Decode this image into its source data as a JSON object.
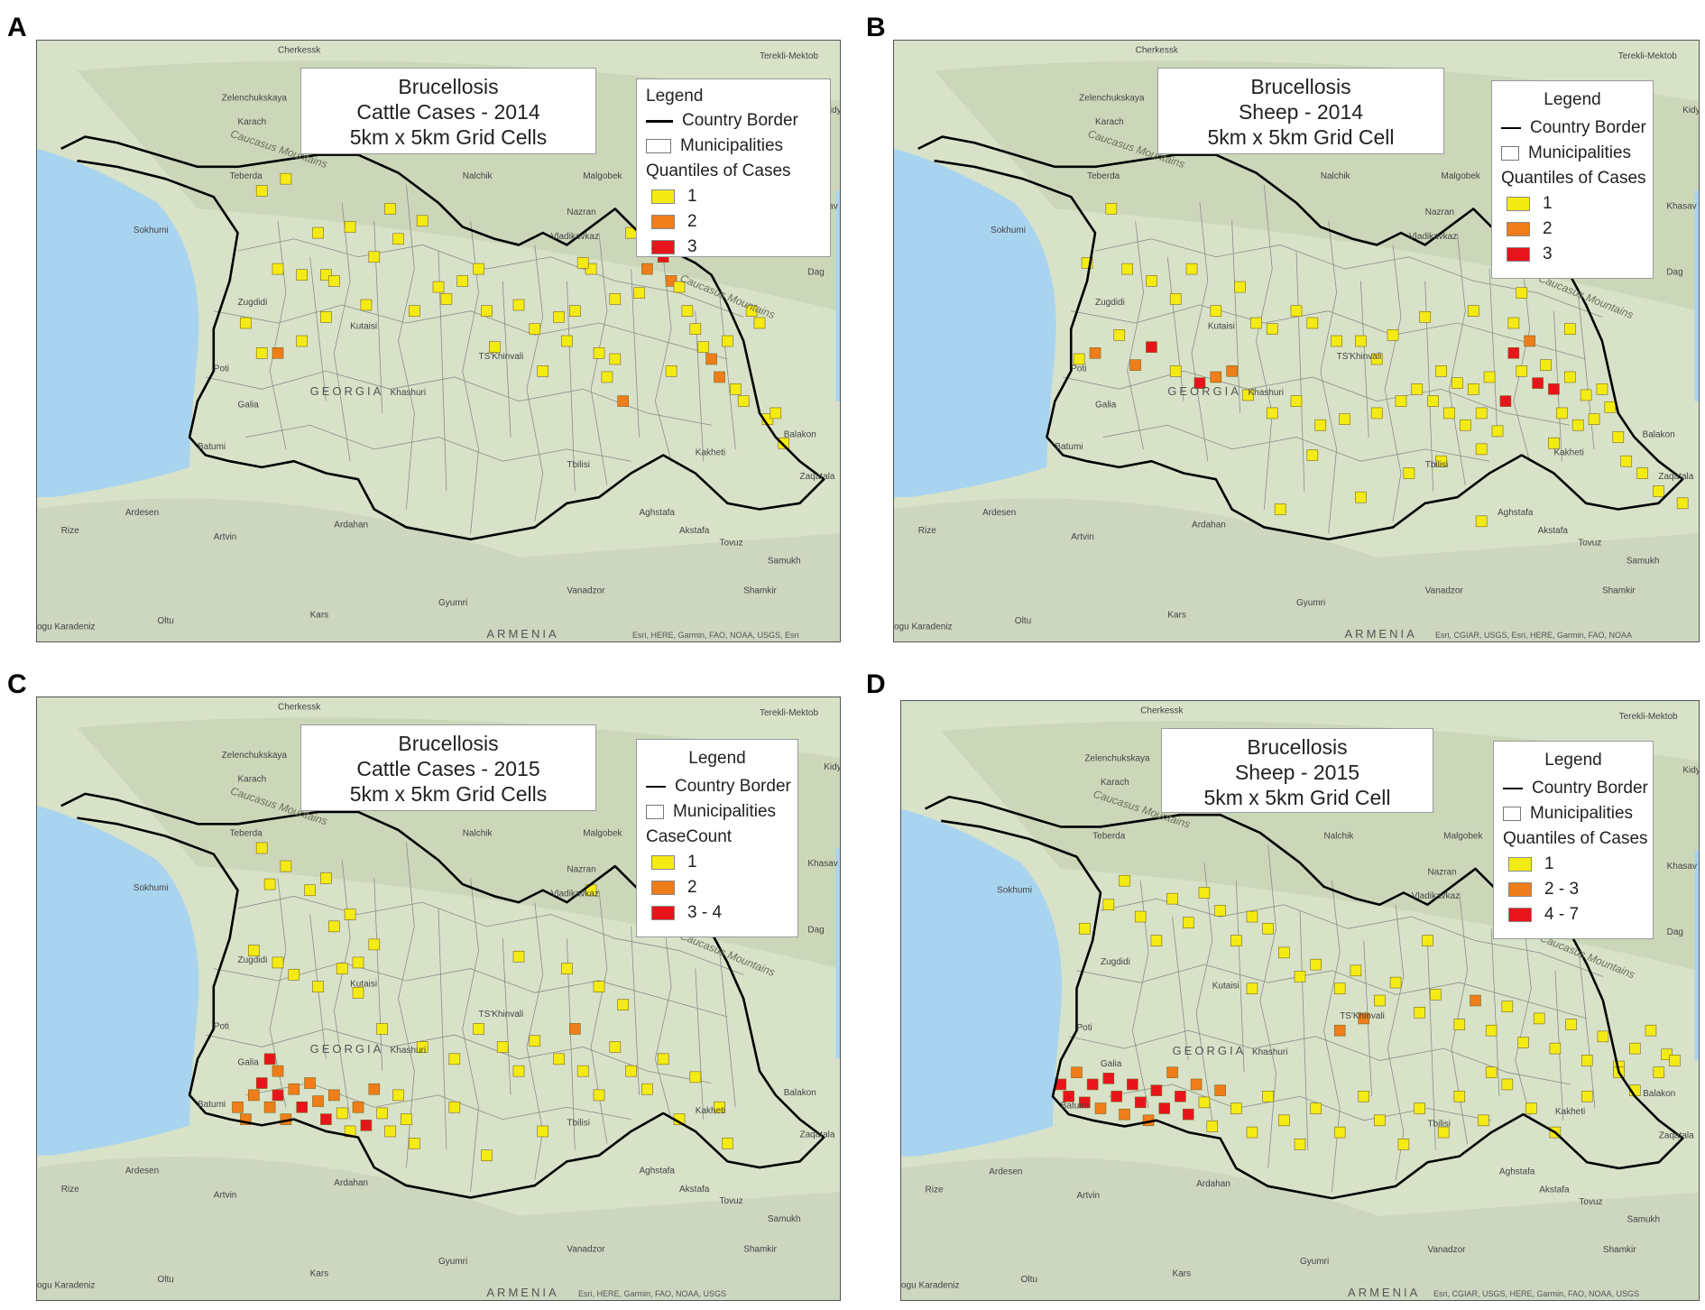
{
  "colors": {
    "class1": "#f5eb14",
    "class2": "#ef7d1a",
    "class3": "#e8141c",
    "sea": "#a9d4f0",
    "land": "#d8e2c8",
    "border": "#000000",
    "municipalities": "#8c8c8c"
  },
  "panels": [
    {
      "letter": "A",
      "title_lines": [
        "Brucellosis",
        "Cattle Cases - 2014",
        "5km x 5km Grid Cells"
      ],
      "legend": {
        "title": "Legend",
        "country_border": "Country Border",
        "municipalities": "Municipalities",
        "class_title": "Quantiles of Cases",
        "classes": [
          "1",
          "2",
          "3"
        ]
      },
      "attribution": "Esri, HERE, Garmin, FAO, NOAA, USGS, Esri"
    },
    {
      "letter": "B",
      "title_lines": [
        "Brucellosis",
        "Sheep - 2014",
        "5km x 5km Grid Cell"
      ],
      "legend": {
        "title": "Legend",
        "country_border": "Country Border",
        "municipalities": "Municipalities",
        "class_title": "Quantiles of Cases",
        "classes": [
          "1",
          "2",
          "3"
        ]
      },
      "attribution": "Esri, CGIAR, USGS, Esri, HERE, Garmin, FAO, NOAA"
    },
    {
      "letter": "C",
      "title_lines": [
        "Brucellosis",
        "Cattle Cases - 2015",
        "5km x 5km Grid Cells"
      ],
      "legend": {
        "title": "Legend",
        "country_border": "Country Border",
        "municipalities": "Municipalities",
        "class_title": "CaseCount",
        "classes": [
          "1",
          "2",
          "3 - 4"
        ]
      },
      "attribution": "Esri, HERE, Garmin, FAO, NOAA, USGS"
    },
    {
      "letter": "D",
      "title_lines": [
        "Brucellosis",
        "Sheep - 2015",
        "5km x 5km Grid Cell"
      ],
      "legend": {
        "title": "Legend",
        "country_border": "Country Border",
        "municipalities": "Municipalities",
        "class_title": "Quantiles of Cases",
        "classes": [
          "1",
          "2 - 3",
          "4 - 7"
        ]
      },
      "attribution": "Esri, CGIAR, USGS, HERE, Garmin, FAO, NOAA, USGS"
    }
  ],
  "place_labels": {
    "cherkessk": "Cherkessk",
    "zelenchukskaya": "Zelenchukskaya",
    "karachaevsk": "Karach",
    "teberda": "Teberda",
    "nalchik": "Nalchik",
    "malgobek": "Malgobek",
    "khasav": "Khasav",
    "sokhumi": "Sokhumi",
    "nazran": "Nazran",
    "vladikavkaz": "Vladikavkaz",
    "zugdidi": "Zugdidi",
    "kutaisi": "Kutaisi",
    "poti": "Poti",
    "gali": "Galia",
    "georgia": "GEORGIA",
    "tskhinvali": "TS'Khinvali",
    "khashuri": "Khashuri",
    "batumi": "Batumi",
    "tbilisi": "Tbilisi",
    "balakon": "Balakon",
    "zaqatala": "Zaqatala",
    "artvin": "Artvin",
    "ardesen": "Ardesen",
    "rize": "Rize",
    "ardahan": "Ardahan",
    "agstafa": "Aghstafa",
    "akstafa": "Akstafa",
    "tovuz": "Tovuz",
    "samukh": "Samukh",
    "shamkir": "Shamkir",
    "vanadzor": "Vanadzor",
    "gyumri": "Gyumri",
    "kars": "Kars",
    "oltu": "Oltu",
    "armenia": "ARMENIA",
    "kakheti": "Kakheti",
    "dagestan": "Dag",
    "caucasus": "Caucasus Mountains",
    "terekli": "Terekli-Mektob",
    "kizlyar": "Kidy",
    "karadeniz": "ogu Karadeniz"
  },
  "cells": {
    "A": [
      [
        0.28,
        0.25,
        1
      ],
      [
        0.31,
        0.23,
        1
      ],
      [
        0.38,
        0.17,
        1
      ],
      [
        0.44,
        0.28,
        1
      ],
      [
        0.35,
        0.32,
        1
      ],
      [
        0.39,
        0.31,
        1
      ],
      [
        0.42,
        0.36,
        1
      ],
      [
        0.45,
        0.33,
        1
      ],
      [
        0.48,
        0.3,
        1
      ],
      [
        0.3,
        0.38,
        1
      ],
      [
        0.33,
        0.39,
        1
      ],
      [
        0.36,
        0.39,
        1
      ],
      [
        0.37,
        0.4,
        1
      ],
      [
        0.26,
        0.47,
        1
      ],
      [
        0.28,
        0.52,
        1
      ],
      [
        0.3,
        0.52,
        2
      ],
      [
        0.33,
        0.5,
        1
      ],
      [
        0.36,
        0.46,
        1
      ],
      [
        0.41,
        0.44,
        1
      ],
      [
        0.47,
        0.45,
        1
      ],
      [
        0.5,
        0.41,
        1
      ],
      [
        0.51,
        0.43,
        1
      ],
      [
        0.53,
        0.4,
        1
      ],
      [
        0.55,
        0.38,
        1
      ],
      [
        0.56,
        0.45,
        1
      ],
      [
        0.57,
        0.51,
        1
      ],
      [
        0.6,
        0.44,
        1
      ],
      [
        0.62,
        0.48,
        1
      ],
      [
        0.63,
        0.55,
        1
      ],
      [
        0.66,
        0.5,
        1
      ],
      [
        0.67,
        0.45,
        1
      ],
      [
        0.69,
        0.38,
        1
      ],
      [
        0.7,
        0.52,
        1
      ],
      [
        0.71,
        0.56,
        1
      ],
      [
        0.72,
        0.43,
        1
      ],
      [
        0.73,
        0.6,
        2
      ],
      [
        0.74,
        0.32,
        1
      ],
      [
        0.75,
        0.42,
        1
      ],
      [
        0.76,
        0.38,
        2
      ],
      [
        0.77,
        0.34,
        3
      ],
      [
        0.78,
        0.36,
        3
      ],
      [
        0.79,
        0.4,
        2
      ],
      [
        0.8,
        0.33,
        3
      ],
      [
        0.81,
        0.45,
        1
      ],
      [
        0.82,
        0.48,
        1
      ],
      [
        0.83,
        0.51,
        1
      ],
      [
        0.84,
        0.53,
        2
      ],
      [
        0.85,
        0.56,
        2
      ],
      [
        0.86,
        0.5,
        1
      ],
      [
        0.87,
        0.58,
        1
      ],
      [
        0.88,
        0.6,
        1
      ],
      [
        0.89,
        0.45,
        1
      ],
      [
        0.9,
        0.47,
        1
      ],
      [
        0.91,
        0.63,
        1
      ],
      [
        0.92,
        0.62,
        1
      ],
      [
        0.93,
        0.67,
        1
      ],
      [
        0.68,
        0.37,
        1
      ],
      [
        0.79,
        0.55,
        1
      ],
      [
        0.8,
        0.41,
        1
      ],
      [
        0.72,
        0.53,
        1
      ],
      [
        0.65,
        0.46,
        1
      ]
    ],
    "B": [
      [
        0.24,
        0.37,
        1
      ],
      [
        0.27,
        0.28,
        1
      ],
      [
        0.29,
        0.38,
        1
      ],
      [
        0.32,
        0.4,
        1
      ],
      [
        0.35,
        0.43,
        1
      ],
      [
        0.37,
        0.38,
        1
      ],
      [
        0.4,
        0.45,
        1
      ],
      [
        0.43,
        0.41,
        1
      ],
      [
        0.45,
        0.47,
        1
      ],
      [
        0.47,
        0.48,
        1
      ],
      [
        0.5,
        0.45,
        1
      ],
      [
        0.52,
        0.47,
        1
      ],
      [
        0.55,
        0.5,
        1
      ],
      [
        0.58,
        0.5,
        1
      ],
      [
        0.6,
        0.53,
        1
      ],
      [
        0.23,
        0.53,
        1
      ],
      [
        0.25,
        0.52,
        2
      ],
      [
        0.28,
        0.49,
        1
      ],
      [
        0.3,
        0.54,
        2
      ],
      [
        0.32,
        0.51,
        3
      ],
      [
        0.35,
        0.55,
        1
      ],
      [
        0.38,
        0.57,
        3
      ],
      [
        0.4,
        0.56,
        2
      ],
      [
        0.42,
        0.55,
        2
      ],
      [
        0.44,
        0.59,
        1
      ],
      [
        0.47,
        0.62,
        1
      ],
      [
        0.5,
        0.6,
        1
      ],
      [
        0.53,
        0.64,
        1
      ],
      [
        0.56,
        0.63,
        1
      ],
      [
        0.6,
        0.62,
        1
      ],
      [
        0.63,
        0.6,
        1
      ],
      [
        0.65,
        0.58,
        1
      ],
      [
        0.67,
        0.6,
        1
      ],
      [
        0.68,
        0.55,
        1
      ],
      [
        0.69,
        0.62,
        1
      ],
      [
        0.7,
        0.57,
        1
      ],
      [
        0.71,
        0.64,
        1
      ],
      [
        0.72,
        0.58,
        1
      ],
      [
        0.73,
        0.62,
        1
      ],
      [
        0.74,
        0.56,
        1
      ],
      [
        0.75,
        0.65,
        1
      ],
      [
        0.76,
        0.6,
        3
      ],
      [
        0.77,
        0.52,
        3
      ],
      [
        0.78,
        0.55,
        1
      ],
      [
        0.79,
        0.5,
        2
      ],
      [
        0.8,
        0.57,
        3
      ],
      [
        0.81,
        0.54,
        1
      ],
      [
        0.82,
        0.58,
        3
      ],
      [
        0.83,
        0.62,
        1
      ],
      [
        0.84,
        0.56,
        1
      ],
      [
        0.85,
        0.64,
        1
      ],
      [
        0.86,
        0.59,
        1
      ],
      [
        0.87,
        0.63,
        1
      ],
      [
        0.88,
        0.58,
        1
      ],
      [
        0.89,
        0.61,
        1
      ],
      [
        0.9,
        0.66,
        1
      ],
      [
        0.91,
        0.7,
        1
      ],
      [
        0.93,
        0.72,
        1
      ],
      [
        0.95,
        0.75,
        1
      ],
      [
        0.98,
        0.77,
        1
      ],
      [
        0.78,
        0.42,
        1
      ],
      [
        0.8,
        0.38,
        1
      ],
      [
        0.66,
        0.46,
        1
      ],
      [
        0.72,
        0.45,
        1
      ],
      [
        0.64,
        0.72,
        1
      ],
      [
        0.58,
        0.76,
        1
      ],
      [
        0.52,
        0.69,
        1
      ],
      [
        0.48,
        0.78,
        1
      ],
      [
        0.68,
        0.7,
        1
      ],
      [
        0.73,
        0.8,
        1
      ],
      [
        0.62,
        0.49,
        1
      ],
      [
        0.77,
        0.47,
        1
      ],
      [
        0.84,
        0.48,
        1
      ],
      [
        0.73,
        0.68,
        1
      ],
      [
        0.82,
        0.67,
        1
      ]
    ],
    "C": [
      [
        0.28,
        0.25,
        1
      ],
      [
        0.29,
        0.31,
        1
      ],
      [
        0.31,
        0.28,
        1
      ],
      [
        0.34,
        0.32,
        1
      ],
      [
        0.36,
        0.3,
        1
      ],
      [
        0.37,
        0.38,
        1
      ],
      [
        0.39,
        0.36,
        1
      ],
      [
        0.4,
        0.44,
        1
      ],
      [
        0.42,
        0.41,
        1
      ],
      [
        0.27,
        0.42,
        1
      ],
      [
        0.3,
        0.44,
        1
      ],
      [
        0.32,
        0.46,
        1
      ],
      [
        0.35,
        0.48,
        1
      ],
      [
        0.38,
        0.45,
        1
      ],
      [
        0.4,
        0.49,
        1
      ],
      [
        0.27,
        0.66,
        2
      ],
      [
        0.28,
        0.64,
        3
      ],
      [
        0.29,
        0.68,
        2
      ],
      [
        0.3,
        0.66,
        3
      ],
      [
        0.31,
        0.7,
        2
      ],
      [
        0.32,
        0.65,
        2
      ],
      [
        0.33,
        0.68,
        3
      ],
      [
        0.34,
        0.64,
        2
      ],
      [
        0.35,
        0.67,
        2
      ],
      [
        0.36,
        0.7,
        3
      ],
      [
        0.37,
        0.66,
        2
      ],
      [
        0.38,
        0.69,
        1
      ],
      [
        0.39,
        0.72,
        1
      ],
      [
        0.4,
        0.68,
        2
      ],
      [
        0.41,
        0.71,
        3
      ],
      [
        0.42,
        0.65,
        2
      ],
      [
        0.43,
        0.69,
        1
      ],
      [
        0.44,
        0.72,
        1
      ],
      [
        0.45,
        0.66,
        1
      ],
      [
        0.46,
        0.7,
        1
      ],
      [
        0.47,
        0.74,
        1
      ],
      [
        0.29,
        0.6,
        3
      ],
      [
        0.3,
        0.62,
        2
      ],
      [
        0.25,
        0.68,
        2
      ],
      [
        0.26,
        0.7,
        2
      ],
      [
        0.52,
        0.6,
        1
      ],
      [
        0.55,
        0.55,
        1
      ],
      [
        0.58,
        0.58,
        1
      ],
      [
        0.6,
        0.62,
        1
      ],
      [
        0.62,
        0.57,
        1
      ],
      [
        0.65,
        0.6,
        1
      ],
      [
        0.67,
        0.55,
        2
      ],
      [
        0.68,
        0.62,
        1
      ],
      [
        0.7,
        0.66,
        1
      ],
      [
        0.72,
        0.58,
        1
      ],
      [
        0.74,
        0.62,
        1
      ],
      [
        0.76,
        0.65,
        1
      ],
      [
        0.78,
        0.6,
        1
      ],
      [
        0.8,
        0.7,
        1
      ],
      [
        0.82,
        0.63,
        1
      ],
      [
        0.85,
        0.68,
        1
      ],
      [
        0.86,
        0.74,
        1
      ],
      [
        0.63,
        0.72,
        1
      ],
      [
        0.56,
        0.76,
        1
      ],
      [
        0.66,
        0.45,
        1
      ],
      [
        0.6,
        0.43,
        1
      ],
      [
        0.7,
        0.48,
        1
      ],
      [
        0.73,
        0.51,
        1
      ],
      [
        0.69,
        0.32,
        1
      ],
      [
        0.52,
        0.68,
        1
      ],
      [
        0.43,
        0.55,
        1
      ],
      [
        0.48,
        0.58,
        1
      ]
    ],
    "D": [
      [
        0.23,
        0.38,
        1
      ],
      [
        0.26,
        0.34,
        1
      ],
      [
        0.28,
        0.3,
        1
      ],
      [
        0.3,
        0.36,
        1
      ],
      [
        0.32,
        0.4,
        1
      ],
      [
        0.34,
        0.33,
        1
      ],
      [
        0.36,
        0.37,
        1
      ],
      [
        0.38,
        0.32,
        1
      ],
      [
        0.4,
        0.35,
        1
      ],
      [
        0.42,
        0.4,
        1
      ],
      [
        0.44,
        0.36,
        1
      ],
      [
        0.46,
        0.38,
        1
      ],
      [
        0.48,
        0.42,
        1
      ],
      [
        0.5,
        0.46,
        1
      ],
      [
        0.52,
        0.44,
        1
      ],
      [
        0.55,
        0.48,
        1
      ],
      [
        0.57,
        0.45,
        1
      ],
      [
        0.6,
        0.5,
        1
      ],
      [
        0.62,
        0.47,
        1
      ],
      [
        0.65,
        0.52,
        1
      ],
      [
        0.67,
        0.49,
        1
      ],
      [
        0.7,
        0.54,
        1
      ],
      [
        0.72,
        0.5,
        2
      ],
      [
        0.74,
        0.55,
        1
      ],
      [
        0.76,
        0.51,
        1
      ],
      [
        0.78,
        0.57,
        1
      ],
      [
        0.8,
        0.53,
        1
      ],
      [
        0.82,
        0.58,
        1
      ],
      [
        0.84,
        0.54,
        1
      ],
      [
        0.86,
        0.6,
        1
      ],
      [
        0.88,
        0.56,
        1
      ],
      [
        0.9,
        0.61,
        1
      ],
      [
        0.92,
        0.58,
        1
      ],
      [
        0.94,
        0.55,
        1
      ],
      [
        0.96,
        0.59,
        1
      ],
      [
        0.2,
        0.64,
        3
      ],
      [
        0.21,
        0.66,
        3
      ],
      [
        0.22,
        0.62,
        2
      ],
      [
        0.23,
        0.67,
        3
      ],
      [
        0.24,
        0.64,
        3
      ],
      [
        0.25,
        0.68,
        2
      ],
      [
        0.26,
        0.63,
        3
      ],
      [
        0.27,
        0.66,
        3
      ],
      [
        0.28,
        0.69,
        2
      ],
      [
        0.29,
        0.64,
        3
      ],
      [
        0.3,
        0.67,
        3
      ],
      [
        0.31,
        0.7,
        2
      ],
      [
        0.32,
        0.65,
        3
      ],
      [
        0.33,
        0.68,
        3
      ],
      [
        0.34,
        0.62,
        2
      ],
      [
        0.35,
        0.66,
        3
      ],
      [
        0.36,
        0.69,
        3
      ],
      [
        0.37,
        0.64,
        2
      ],
      [
        0.38,
        0.67,
        1
      ],
      [
        0.39,
        0.71,
        1
      ],
      [
        0.4,
        0.65,
        2
      ],
      [
        0.42,
        0.68,
        1
      ],
      [
        0.44,
        0.72,
        1
      ],
      [
        0.46,
        0.66,
        1
      ],
      [
        0.48,
        0.7,
        1
      ],
      [
        0.5,
        0.74,
        1
      ],
      [
        0.52,
        0.68,
        1
      ],
      [
        0.55,
        0.72,
        1
      ],
      [
        0.58,
        0.66,
        1
      ],
      [
        0.6,
        0.7,
        1
      ],
      [
        0.63,
        0.74,
        1
      ],
      [
        0.65,
        0.68,
        1
      ],
      [
        0.68,
        0.72,
        1
      ],
      [
        0.7,
        0.66,
        1
      ],
      [
        0.73,
        0.7,
        1
      ],
      [
        0.76,
        0.64,
        1
      ],
      [
        0.79,
        0.68,
        1
      ],
      [
        0.82,
        0.72,
        1
      ],
      [
        0.86,
        0.66,
        1
      ],
      [
        0.9,
        0.62,
        1
      ],
      [
        0.92,
        0.65,
        1
      ],
      [
        0.55,
        0.55,
        2
      ],
      [
        0.58,
        0.53,
        2
      ],
      [
        0.44,
        0.48,
        1
      ],
      [
        0.66,
        0.4,
        1
      ],
      [
        0.74,
        0.62,
        1
      ],
      [
        0.97,
        0.6,
        1
      ],
      [
        0.95,
        0.62,
        1
      ]
    ]
  }
}
